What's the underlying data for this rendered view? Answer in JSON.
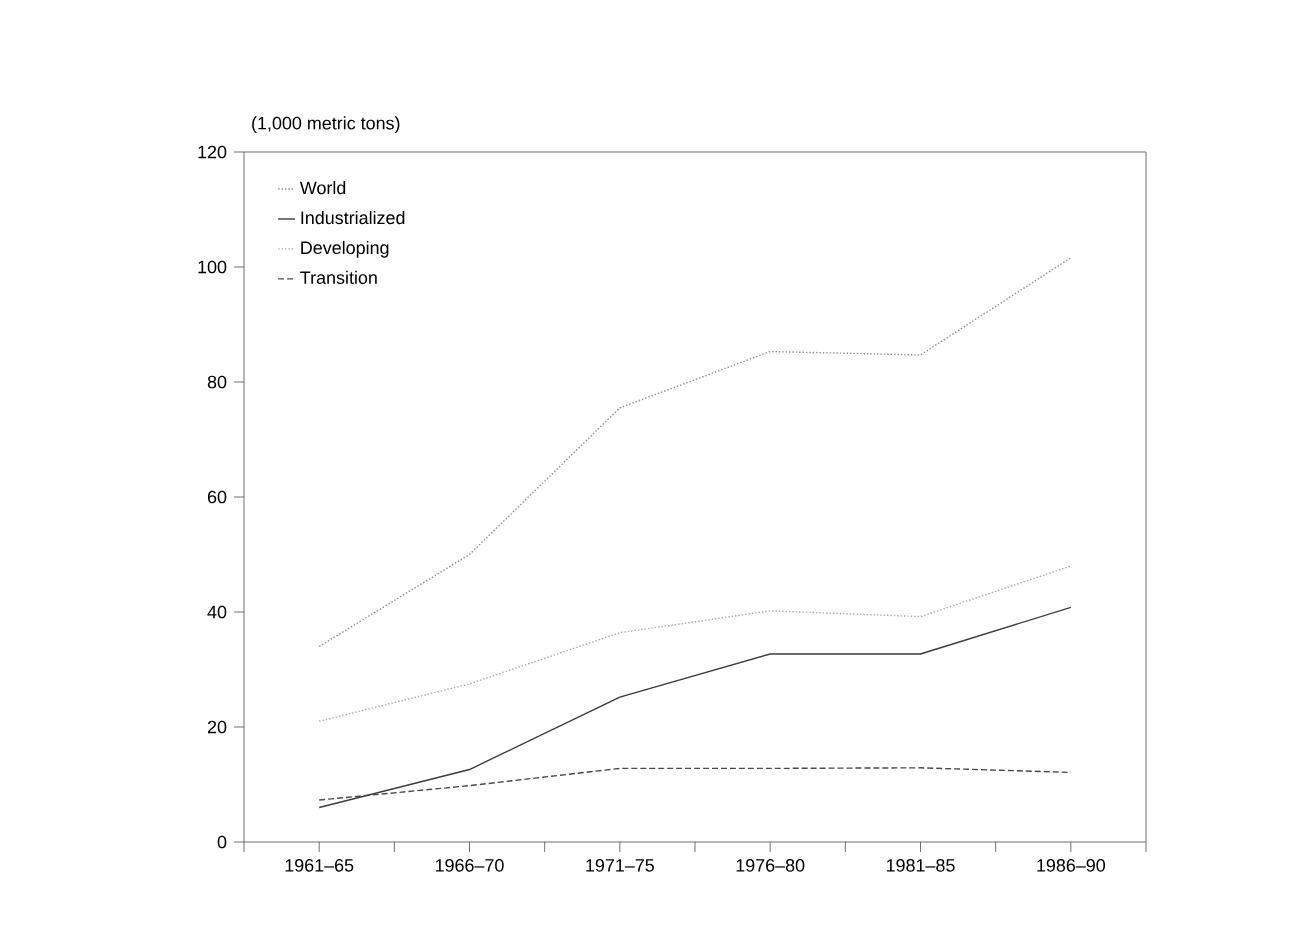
{
  "chart_data": {
    "type": "line",
    "ylabel": "(1,000 metric tons)",
    "categories": [
      "1961–65",
      "1966–70",
      "1971–75",
      "1976–80",
      "1981–85",
      "1986–90"
    ],
    "series": [
      {
        "name": "World",
        "color": "#8c8c8c",
        "line_style": "dotted",
        "values": [
          34,
          50,
          75.5,
          85.3,
          84.7,
          101.6
        ]
      },
      {
        "name": "Industrialized",
        "color": "#3c3c3c",
        "line_style": "solid",
        "values": [
          6.0,
          12.6,
          25.2,
          32.7,
          32.7,
          40.8
        ]
      },
      {
        "name": "Developing",
        "color": "#a8a8a8",
        "line_style": "dotted",
        "values": [
          21,
          27.5,
          36.4,
          40.2,
          39.2,
          48
        ]
      },
      {
        "name": "Transition",
        "color": "#4a4a4a",
        "line_style": "dashed",
        "values": [
          7.3,
          9.8,
          12.8,
          12.8,
          12.9,
          12.1
        ]
      }
    ],
    "ylim": [
      0,
      120
    ],
    "yticks": [
      0,
      20,
      40,
      60,
      80,
      100,
      120
    ],
    "grid": false,
    "legend": "top left",
    "marker": "none"
  }
}
